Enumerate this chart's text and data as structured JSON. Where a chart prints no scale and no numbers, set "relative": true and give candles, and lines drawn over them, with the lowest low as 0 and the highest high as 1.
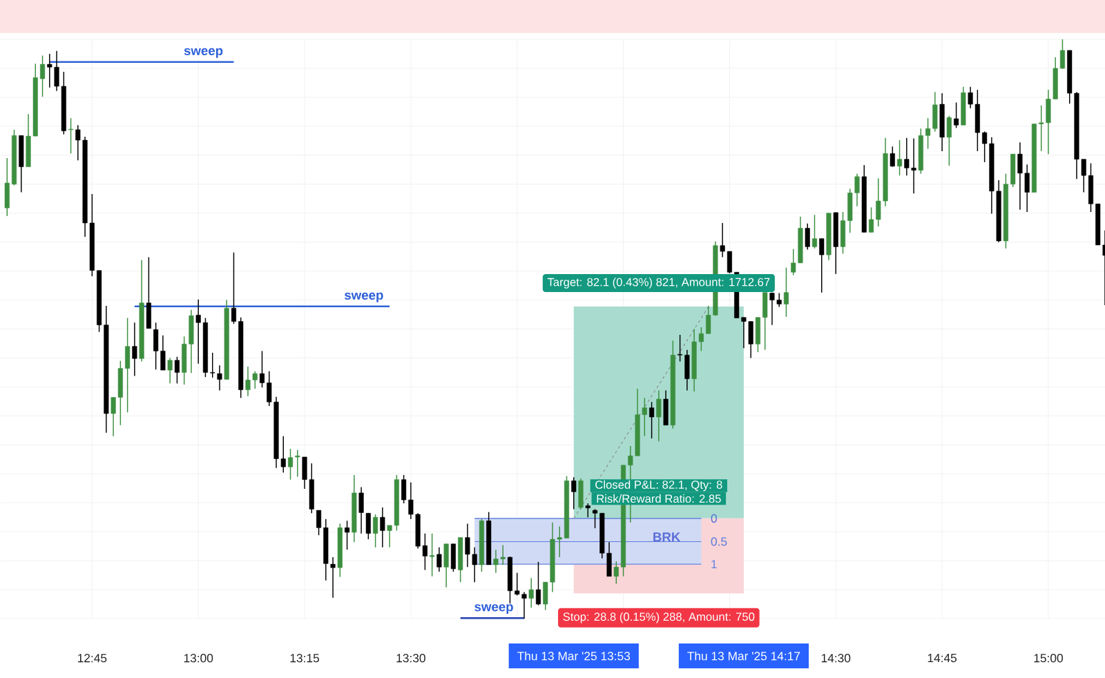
{
  "chart_data": {
    "type": "candlestick",
    "relative": true,
    "grid": true,
    "xlim": [
      "2025-03-13T12:32",
      "2025-03-13T15:08"
    ],
    "xticks": [
      {
        "value": "2025-03-13T12:45",
        "label": "12:45"
      },
      {
        "value": "2025-03-13T13:00",
        "label": "13:00"
      },
      {
        "value": "2025-03-13T13:15",
        "label": "13:15"
      },
      {
        "value": "2025-03-13T13:30",
        "label": "13:30"
      },
      {
        "value": "2025-03-13T13:45",
        "label": null
      },
      {
        "value": "2025-03-13T14:00",
        "label": null
      },
      {
        "value": "2025-03-13T14:15",
        "label": null
      },
      {
        "value": "2025-03-13T14:30",
        "label": "14:30"
      },
      {
        "value": "2025-03-13T14:45",
        "label": "14:45"
      },
      {
        "value": "2025-03-13T15:00",
        "label": "15:00"
      }
    ],
    "x": [
      "2025-03-13T12:33",
      "2025-03-13T12:34",
      "2025-03-13T12:35",
      "2025-03-13T12:36",
      "2025-03-13T12:37",
      "2025-03-13T12:38",
      "2025-03-13T12:39",
      "2025-03-13T12:40",
      "2025-03-13T12:41",
      "2025-03-13T12:42",
      "2025-03-13T12:43",
      "2025-03-13T12:44",
      "2025-03-13T12:45",
      "2025-03-13T12:46",
      "2025-03-13T12:47",
      "2025-03-13T12:48",
      "2025-03-13T12:49",
      "2025-03-13T12:50",
      "2025-03-13T12:51",
      "2025-03-13T12:52",
      "2025-03-13T12:53",
      "2025-03-13T12:54",
      "2025-03-13T12:55",
      "2025-03-13T12:56",
      "2025-03-13T12:57",
      "2025-03-13T12:58",
      "2025-03-13T12:59",
      "2025-03-13T13:00",
      "2025-03-13T13:01",
      "2025-03-13T13:02",
      "2025-03-13T13:03",
      "2025-03-13T13:04",
      "2025-03-13T13:05",
      "2025-03-13T13:06",
      "2025-03-13T13:07",
      "2025-03-13T13:08",
      "2025-03-13T13:09",
      "2025-03-13T13:10",
      "2025-03-13T13:11",
      "2025-03-13T13:12",
      "2025-03-13T13:13",
      "2025-03-13T13:14",
      "2025-03-13T13:15",
      "2025-03-13T13:16",
      "2025-03-13T13:17",
      "2025-03-13T13:18",
      "2025-03-13T13:19",
      "2025-03-13T13:20",
      "2025-03-13T13:21",
      "2025-03-13T13:22",
      "2025-03-13T13:23",
      "2025-03-13T13:24",
      "2025-03-13T13:25",
      "2025-03-13T13:26",
      "2025-03-13T13:27",
      "2025-03-13T13:28",
      "2025-03-13T13:29",
      "2025-03-13T13:30",
      "2025-03-13T13:31",
      "2025-03-13T13:32",
      "2025-03-13T13:33",
      "2025-03-13T13:34",
      "2025-03-13T13:35",
      "2025-03-13T13:36",
      "2025-03-13T13:37",
      "2025-03-13T13:38",
      "2025-03-13T13:39",
      "2025-03-13T13:40",
      "2025-03-13T13:41",
      "2025-03-13T13:42",
      "2025-03-13T13:43",
      "2025-03-13T13:44",
      "2025-03-13T13:45",
      "2025-03-13T13:46",
      "2025-03-13T13:47",
      "2025-03-13T13:48",
      "2025-03-13T13:49",
      "2025-03-13T13:50",
      "2025-03-13T13:51",
      "2025-03-13T13:52",
      "2025-03-13T13:53",
      "2025-03-13T13:54",
      "2025-03-13T13:55",
      "2025-03-13T13:56",
      "2025-03-13T13:57",
      "2025-03-13T13:58",
      "2025-03-13T13:59",
      "2025-03-13T14:00",
      "2025-03-13T14:01",
      "2025-03-13T14:02",
      "2025-03-13T14:03",
      "2025-03-13T14:04",
      "2025-03-13T14:05",
      "2025-03-13T14:06",
      "2025-03-13T14:07",
      "2025-03-13T14:08",
      "2025-03-13T14:09",
      "2025-03-13T14:10",
      "2025-03-13T14:11",
      "2025-03-13T14:12",
      "2025-03-13T14:13",
      "2025-03-13T14:14",
      "2025-03-13T14:15",
      "2025-03-13T14:16",
      "2025-03-13T14:17",
      "2025-03-13T14:18",
      "2025-03-13T14:19",
      "2025-03-13T14:20",
      "2025-03-13T14:21",
      "2025-03-13T14:22",
      "2025-03-13T14:23",
      "2025-03-13T14:24",
      "2025-03-13T14:25",
      "2025-03-13T14:26",
      "2025-03-13T14:27",
      "2025-03-13T14:28",
      "2025-03-13T14:29",
      "2025-03-13T14:30",
      "2025-03-13T14:31",
      "2025-03-13T14:32",
      "2025-03-13T14:33",
      "2025-03-13T14:34",
      "2025-03-13T14:35",
      "2025-03-13T14:36",
      "2025-03-13T14:37",
      "2025-03-13T14:38",
      "2025-03-13T14:39",
      "2025-03-13T14:40",
      "2025-03-13T14:41",
      "2025-03-13T14:42",
      "2025-03-13T14:43",
      "2025-03-13T14:44",
      "2025-03-13T14:45",
      "2025-03-13T14:46",
      "2025-03-13T14:47",
      "2025-03-13T14:48",
      "2025-03-13T14:49",
      "2025-03-13T14:50",
      "2025-03-13T14:51",
      "2025-03-13T14:52",
      "2025-03-13T14:53",
      "2025-03-13T14:54",
      "2025-03-13T14:55",
      "2025-03-13T14:56",
      "2025-03-13T14:57",
      "2025-03-13T14:58",
      "2025-03-13T14:59",
      "2025-03-13T15:00",
      "2025-03-13T15:01",
      "2025-03-13T15:02",
      "2025-03-13T15:03",
      "2025-03-13T15:04",
      "2025-03-13T15:05",
      "2025-03-13T15:06",
      "2025-03-13T15:07",
      "2025-03-13T15:08"
    ],
    "ohlc": [
      [
        0.709,
        0.795,
        0.695,
        0.752
      ],
      [
        0.75,
        0.844,
        0.748,
        0.834
      ],
      [
        0.834,
        0.834,
        0.736,
        0.78
      ],
      [
        0.78,
        0.871,
        0.78,
        0.833
      ],
      [
        0.833,
        0.958,
        0.833,
        0.934
      ],
      [
        0.932,
        0.972,
        0.901,
        0.957
      ],
      [
        0.957,
        0.975,
        0.917,
        0.952
      ],
      [
        0.952,
        0.98,
        0.911,
        0.919
      ],
      [
        0.919,
        0.944,
        0.836,
        0.842
      ],
      [
        0.844,
        0.864,
        0.803,
        0.845
      ],
      [
        0.844,
        0.852,
        0.791,
        0.826
      ],
      [
        0.826,
        0.832,
        0.659,
        0.683
      ],
      [
        0.683,
        0.733,
        0.591,
        0.601
      ],
      [
        0.601,
        0.601,
        0.495,
        0.507
      ],
      [
        0.507,
        0.54,
        0.321,
        0.354
      ],
      [
        0.354,
        0.382,
        0.315,
        0.382
      ],
      [
        0.382,
        0.445,
        0.334,
        0.432
      ],
      [
        0.432,
        0.519,
        0.356,
        0.47
      ],
      [
        0.47,
        0.511,
        0.419,
        0.449
      ],
      [
        0.449,
        0.619,
        0.444,
        0.545
      ],
      [
        0.545,
        0.624,
        0.501,
        0.501
      ],
      [
        0.499,
        0.511,
        0.43,
        0.462
      ],
      [
        0.462,
        0.489,
        0.429,
        0.429
      ],
      [
        0.429,
        0.45,
        0.406,
        0.446
      ],
      [
        0.446,
        0.452,
        0.406,
        0.425
      ],
      [
        0.425,
        0.487,
        0.404,
        0.474
      ],
      [
        0.474,
        0.533,
        0.424,
        0.523
      ],
      [
        0.524,
        0.551,
        0.44,
        0.511
      ],
      [
        0.511,
        0.519,
        0.417,
        0.425
      ],
      [
        0.425,
        0.459,
        0.416,
        0.424
      ],
      [
        0.423,
        0.437,
        0.394,
        0.413
      ],
      [
        0.413,
        0.55,
        0.413,
        0.536
      ],
      [
        0.536,
        0.632,
        0.509,
        0.513
      ],
      [
        0.513,
        0.52,
        0.381,
        0.395
      ],
      [
        0.395,
        0.435,
        0.384,
        0.412
      ],
      [
        0.412,
        0.427,
        0.397,
        0.423
      ],
      [
        0.423,
        0.462,
        0.399,
        0.407
      ],
      [
        0.407,
        0.427,
        0.367,
        0.374
      ],
      [
        0.374,
        0.383,
        0.26,
        0.276
      ],
      [
        0.276,
        0.315,
        0.252,
        0.262
      ],
      [
        0.262,
        0.293,
        0.24,
        0.278
      ],
      [
        0.279,
        0.291,
        0.245,
        0.281
      ],
      [
        0.279,
        0.279,
        0.224,
        0.24
      ],
      [
        0.24,
        0.268,
        0.182,
        0.189
      ],
      [
        0.187,
        0.187,
        0.144,
        0.157
      ],
      [
        0.157,
        0.172,
        0.066,
        0.095
      ],
      [
        0.094,
        0.106,
        0.036,
        0.088
      ],
      [
        0.088,
        0.164,
        0.072,
        0.157
      ],
      [
        0.157,
        0.169,
        0.119,
        0.149
      ],
      [
        0.149,
        0.248,
        0.132,
        0.217
      ],
      [
        0.217,
        0.227,
        0.147,
        0.183
      ],
      [
        0.182,
        0.182,
        0.137,
        0.147
      ],
      [
        0.147,
        0.18,
        0.123,
        0.175
      ],
      [
        0.175,
        0.192,
        0.123,
        0.152
      ],
      [
        0.152,
        0.161,
        0.123,
        0.161
      ],
      [
        0.161,
        0.248,
        0.152,
        0.24
      ],
      [
        0.24,
        0.248,
        0.199,
        0.205
      ],
      [
        0.205,
        0.235,
        0.172,
        0.18
      ],
      [
        0.18,
        0.182,
        0.121,
        0.125
      ],
      [
        0.126,
        0.147,
        0.084,
        0.108
      ],
      [
        0.107,
        0.147,
        0.073,
        0.109
      ],
      [
        0.111,
        0.123,
        0.081,
        0.089
      ],
      [
        0.089,
        0.129,
        0.054,
        0.129
      ],
      [
        0.129,
        0.129,
        0.081,
        0.086
      ],
      [
        0.084,
        0.14,
        0.063,
        0.14
      ],
      [
        0.14,
        0.164,
        0.089,
        0.111
      ],
      [
        0.111,
        0.123,
        0.063,
        0.093
      ],
      [
        0.093,
        0.172,
        0.081,
        0.169
      ],
      [
        0.169,
        0.184,
        0.093,
        0.093
      ],
      [
        0.093,
        0.119,
        0.079,
        0.103
      ],
      [
        0.103,
        0.127,
        0.093,
        0.106
      ],
      [
        0.106,
        0.107,
        0.026,
        0.048
      ],
      [
        0.048,
        0.079,
        0.04,
        0.042
      ],
      [
        0.042,
        0.046,
        0,
        0.035
      ],
      [
        0.035,
        0.07,
        0.019,
        0.05
      ],
      [
        0.05,
        0.098,
        0.023,
        0.025
      ],
      [
        0.025,
        0.063,
        0.015,
        0.063
      ],
      [
        0.063,
        0.166,
        0.046,
        0.137
      ],
      [
        0.137,
        0.159,
        0.106,
        0.14
      ],
      [
        0.139,
        0.246,
        0.139,
        0.238
      ],
      [
        0.238,
        0.244,
        0.189,
        0.219
      ],
      [
        0.192,
        0.242,
        0.189,
        0.238
      ],
      [
        0.195,
        0.199,
        0.175,
        0.191
      ],
      [
        0.187,
        0.189,
        0.156,
        0.182
      ],
      [
        0.182,
        0.182,
        0.104,
        0.113
      ],
      [
        0.113,
        0.132,
        0.073,
        0.073
      ],
      [
        0.073,
        0.099,
        0.06,
        0.089
      ],
      [
        0.089,
        0.265,
        0.073,
        0.265
      ],
      [
        0.265,
        0.298,
        0.166,
        0.281
      ],
      [
        0.281,
        0.397,
        0.281,
        0.352
      ],
      [
        0.352,
        0.381,
        0.315,
        0.364
      ],
      [
        0.364,
        0.374,
        0.311,
        0.348
      ],
      [
        0.348,
        0.394,
        0.306,
        0.379
      ],
      [
        0.379,
        0.394,
        0.334,
        0.334
      ],
      [
        0.334,
        0.48,
        0.328,
        0.455
      ],
      [
        0.456,
        0.49,
        0.444,
        0.455
      ],
      [
        0.455,
        0.464,
        0.394,
        0.414
      ],
      [
        0.414,
        0.5,
        0.392,
        0.478
      ],
      [
        0.478,
        0.503,
        0.462,
        0.492
      ],
      [
        0.492,
        0.54,
        0.492,
        0.524
      ],
      [
        0.524,
        0.651,
        0.523,
        0.644
      ],
      [
        0.644,
        0.683,
        0.624,
        0.634
      ],
      [
        0.634,
        0.634,
        0.596,
        0.598
      ],
      [
        0.598,
        0.598,
        0.519,
        0.519
      ],
      [
        0.52,
        0.52,
        0.467,
        0.513
      ],
      [
        0.513,
        0.513,
        0.45,
        0.474
      ],
      [
        0.474,
        0.52,
        0.46,
        0.52
      ],
      [
        0.52,
        0.563,
        0.464,
        0.563
      ],
      [
        0.562,
        0.563,
        0.507,
        0.55
      ],
      [
        0.55,
        0.562,
        0.538,
        0.543
      ],
      [
        0.543,
        0.606,
        0.521,
        0.563
      ],
      [
        0.598,
        0.638,
        0.593,
        0.614
      ],
      [
        0.614,
        0.694,
        0.614,
        0.674
      ],
      [
        0.674,
        0.682,
        0.637,
        0.642
      ],
      [
        0.642,
        0.697,
        0.639,
        0.656
      ],
      [
        0.656,
        0.656,
        0.563,
        0.628
      ],
      [
        0.628,
        0.7,
        0.619,
        0.7
      ],
      [
        0.701,
        0.701,
        0.595,
        0.642
      ],
      [
        0.642,
        0.702,
        0.63,
        0.687
      ],
      [
        0.687,
        0.742,
        0.666,
        0.735
      ],
      [
        0.735,
        0.768,
        0.712,
        0.763
      ],
      [
        0.763,
        0.783,
        0.667,
        0.667
      ],
      [
        0.667,
        0.71,
        0.667,
        0.689
      ],
      [
        0.689,
        0.76,
        0.677,
        0.721
      ],
      [
        0.721,
        0.83,
        0.712,
        0.803
      ],
      [
        0.803,
        0.815,
        0.78,
        0.781
      ],
      [
        0.781,
        0.826,
        0.765,
        0.793
      ],
      [
        0.793,
        0.83,
        0.765,
        0.778
      ],
      [
        0.778,
        0.829,
        0.734,
        0.774
      ],
      [
        0.774,
        0.846,
        0.768,
        0.834
      ],
      [
        0.834,
        0.864,
        0.811,
        0.846
      ],
      [
        0.846,
        0.909,
        0.841,
        0.887
      ],
      [
        0.888,
        0.907,
        0.807,
        0.831
      ],
      [
        0.831,
        0.868,
        0.782,
        0.865
      ],
      [
        0.863,
        0.891,
        0.847,
        0.852
      ],
      [
        0.852,
        0.918,
        0.852,
        0.908
      ],
      [
        0.908,
        0.918,
        0.881,
        0.888
      ],
      [
        0.888,
        0.913,
        0.807,
        0.839
      ],
      [
        0.839,
        0.841,
        0.788,
        0.82
      ],
      [
        0.82,
        0.831,
        0.699,
        0.738
      ],
      [
        0.738,
        0.757,
        0.65,
        0.652
      ],
      [
        0.652,
        0.768,
        0.639,
        0.75
      ],
      [
        0.75,
        0.802,
        0.745,
        0.802
      ],
      [
        0.802,
        0.822,
        0.706,
        0.769
      ],
      [
        0.769,
        0.784,
        0.702,
        0.736
      ],
      [
        0.736,
        0.854,
        0.736,
        0.854
      ],
      [
        0.854,
        0.886,
        0.807,
        0.856
      ],
      [
        0.856,
        0.913,
        0.802,
        0.897
      ],
      [
        0.897,
        0.969,
        0.897,
        0.95
      ],
      [
        0.95,
        1,
        0.949,
        0.981
      ],
      [
        0.981,
        0.981,
        0.889,
        0.907
      ],
      [
        0.907,
        0.909,
        0.759,
        0.793
      ],
      [
        0.793,
        0.793,
        0.736,
        0.765
      ],
      [
        0.765,
        0.786,
        0.702,
        0.716
      ],
      [
        0.716,
        0.716,
        0.645,
        0.645
      ],
      [
        0.645,
        0.67,
        0.541,
        0.627
      ]
    ],
    "colors": [
      "#3d8f40",
      "#3d8f40",
      "#000000",
      "#3d8f40",
      "#3d8f40",
      "#3d8f40",
      "#000000",
      "#000000",
      "#000000",
      "#3d8f40",
      "#000000",
      "#000000",
      "#000000",
      "#000000",
      "#000000",
      "#3d8f40",
      "#3d8f40",
      "#3d8f40",
      "#000000",
      "#3d8f40",
      "#000000",
      "#000000",
      "#000000",
      "#3d8f40",
      "#000000",
      "#3d8f40",
      "#3d8f40",
      "#000000",
      "#000000",
      "#000000",
      "#000000",
      "#3d8f40",
      "#000000",
      "#000000",
      "#3d8f40",
      "#3d8f40",
      "#000000",
      "#000000",
      "#000000",
      "#000000",
      "#3d8f40",
      "#3d8f40",
      "#000000",
      "#000000",
      "#000000",
      "#000000",
      "#000000",
      "#3d8f40",
      "#000000",
      "#3d8f40",
      "#000000",
      "#000000",
      "#3d8f40",
      "#000000",
      "#3d8f40",
      "#3d8f40",
      "#000000",
      "#000000",
      "#000000",
      "#000000",
      "#3d8f40",
      "#000000",
      "#3d8f40",
      "#000000",
      "#3d8f40",
      "#000000",
      "#000000",
      "#3d8f40",
      "#000000",
      "#3d8f40",
      "#3d8f40",
      "#000000",
      "#000000",
      "#000000",
      "#3d8f40",
      "#000000",
      "#3d8f40",
      "#3d8f40",
      "#3d8f40",
      "#3d8f40",
      "#000000",
      "#3d8f40",
      "#000000",
      "#000000",
      "#000000",
      "#000000",
      "#3d8f40",
      "#3d8f40",
      "#3d8f40",
      "#3d8f40",
      "#3d8f40",
      "#000000",
      "#3d8f40",
      "#000000",
      "#3d8f40",
      "#000000",
      "#000000",
      "#3d8f40",
      "#3d8f40",
      "#3d8f40",
      "#3d8f40",
      "#000000",
      "#000000",
      "#000000",
      "#000000",
      "#000000",
      "#3d8f40",
      "#3d8f40",
      "#000000",
      "#000000",
      "#3d8f40",
      "#3d8f40",
      "#3d8f40",
      "#000000",
      "#3d8f40",
      "#000000",
      "#3d8f40",
      "#000000",
      "#3d8f40",
      "#3d8f40",
      "#3d8f40",
      "#000000",
      "#3d8f40",
      "#3d8f40",
      "#3d8f40",
      "#000000",
      "#3d8f40",
      "#000000",
      "#000000",
      "#3d8f40",
      "#3d8f40",
      "#3d8f40",
      "#000000",
      "#3d8f40",
      "#000000",
      "#3d8f40",
      "#000000",
      "#000000",
      "#000000",
      "#000000",
      "#000000",
      "#3d8f40",
      "#3d8f40",
      "#000000",
      "#000000",
      "#3d8f40",
      "#3d8f40",
      "#3d8f40",
      "#3d8f40",
      "#3d8f40",
      "#000000",
      "#000000",
      "#000000",
      "#000000",
      "#000000",
      "#000000"
    ],
    "series": [
      {
        "type": "line",
        "x": [
          "2025-03-13T13:53",
          "2025-03-13T14:17"
        ],
        "values": [
          0.538,
          0.538
        ],
        "lower": [
          0.173,
          0.173
        ],
        "upper": [
          0.538,
          0.538
        ],
        "color": "#a9dccf"
      },
      {
        "type": "line",
        "x": [
          "2025-03-13T13:53",
          "2025-03-13T14:17"
        ],
        "values": [
          0.044,
          0.044
        ],
        "lower": [
          0.044,
          0.044
        ],
        "upper": [
          0.173,
          0.173
        ],
        "color": "#f9d5d8"
      },
      {
        "type": "line",
        "name": "0",
        "x": [
          "2025-03-13T13:39",
          "2025-03-13T14:11"
        ],
        "values": [
          0.173,
          0.173
        ],
        "color": "#4f72d6"
      },
      {
        "type": "line",
        "name": "0.5",
        "x": [
          "2025-03-13T13:39",
          "2025-03-13T14:11"
        ],
        "values": [
          0.133,
          0.133
        ],
        "lower": [
          0.094,
          0.094
        ],
        "upper": [
          0.173,
          0.173
        ],
        "color": "#5a7bdb"
      },
      {
        "type": "line",
        "name": "1",
        "x": [
          "2025-03-13T13:39",
          "2025-03-13T14:11"
        ],
        "values": [
          0.094,
          0.094
        ],
        "color": "#6683de"
      },
      {
        "type": "line",
        "x": [
          "2025-03-13T12:39",
          "2025-03-13T13:05"
        ],
        "values": [
          0.961,
          0.961
        ],
        "color": "#2f62d6"
      },
      {
        "type": "line",
        "x": [
          "2025-03-13T12:51",
          "2025-03-13T13:27"
        ],
        "values": [
          0.539,
          0.539
        ],
        "color": "#2f62d6"
      },
      {
        "type": "line",
        "x": [
          "2025-03-13T13:37",
          "2025-03-13T13:46"
        ],
        "values": [
          0.001,
          0.001
        ],
        "color": "#1f3fae"
      },
      {
        "type": "line",
        "line_style": "dashed",
        "x": [
          "2025-03-13T13:53",
          "2025-03-13T14:12"
        ],
        "values": [
          0.173,
          0.538
        ],
        "color": "#8a8a8a"
      }
    ],
    "bands": [
      {
        "axis": "y",
        "from": 1.011,
        "to": 1.068,
        "color": "#fde3e3"
      }
    ],
    "annotations": [
      "sweep",
      "sweep",
      "sweep",
      "Target: 82.1 (0.43%) 821, Amount: 1712.67",
      "Closed P&L: 82.1, Qty: 8",
      "Risk/Reward Ratio: 2.85",
      "BRK",
      "Stop: 28.8 (0.15%) 288, Amount: 750",
      "Thu 13 Mar '25 13:53",
      "Thu 13 Mar '25 14:17"
    ]
  }
}
